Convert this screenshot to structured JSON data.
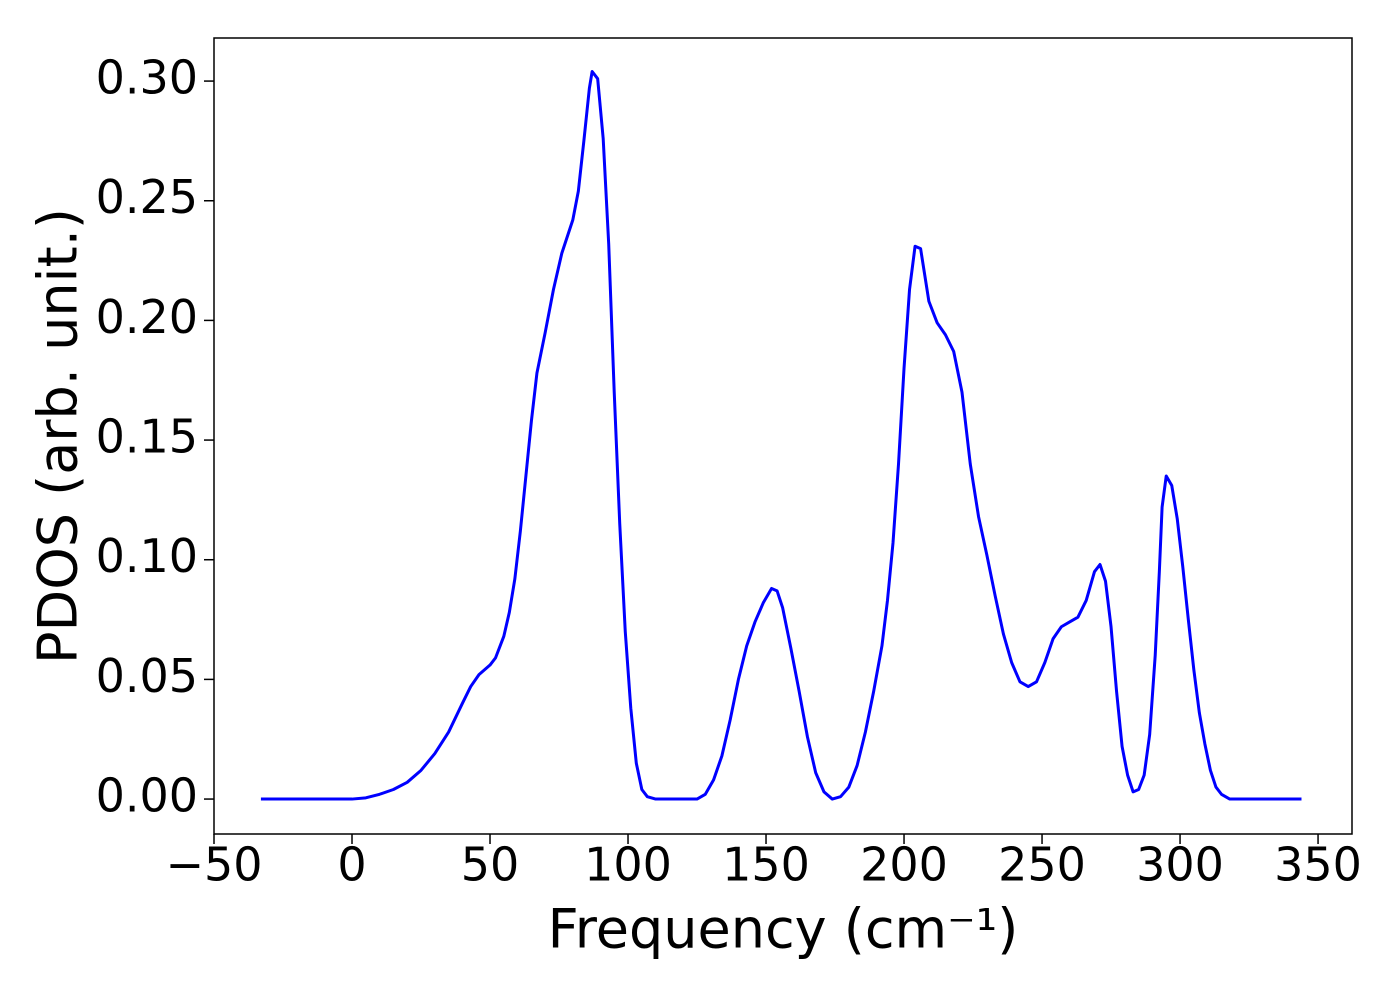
{
  "chart_data": {
    "type": "line",
    "xlabel": "Frequency (cm⁻¹)",
    "ylabel": "PDOS (arb. unit.)",
    "xlim": [
      -50,
      362.3
    ],
    "ylim": [
      -0.0146,
      0.318
    ],
    "xticks": [
      {
        "value": -50,
        "label": "−50"
      },
      0,
      50,
      100,
      150,
      200,
      250,
      300,
      350
    ],
    "yticks": [
      {
        "value": 0,
        "label": "0.00"
      },
      {
        "value": 0.05,
        "label": "0.05"
      },
      {
        "value": 0.1,
        "label": "0.10"
      },
      {
        "value": 0.15,
        "label": "0.15"
      },
      {
        "value": 0.2,
        "label": "0.20"
      },
      {
        "value": 0.25,
        "label": "0.25"
      },
      {
        "value": 0.3,
        "label": "0.30"
      }
    ],
    "color": "#0000ff",
    "x": [
      -33,
      0,
      5,
      10,
      15,
      20,
      25,
      30,
      35,
      40,
      43,
      46,
      50,
      52,
      55,
      57,
      59,
      61,
      63,
      65,
      67,
      70,
      73,
      76,
      80,
      82,
      84,
      86,
      87,
      89,
      91,
      93,
      95,
      97,
      99,
      101,
      103,
      105,
      107,
      110,
      125,
      128,
      131,
      134,
      137,
      140,
      143,
      146,
      149,
      152,
      154,
      156,
      159,
      162,
      165,
      168,
      171,
      174,
      177,
      180,
      183,
      186,
      189,
      192,
      194,
      196,
      198,
      200,
      202,
      204,
      206,
      209,
      212,
      215,
      218,
      221,
      224,
      227,
      230,
      233,
      236,
      239,
      242,
      245,
      248,
      251,
      254,
      257,
      260,
      263,
      266,
      269,
      271,
      273,
      275,
      277,
      279,
      281,
      283,
      285,
      287,
      289,
      291,
      292.5,
      293.5,
      295,
      297,
      299,
      301,
      303,
      305,
      307,
      309,
      311,
      313,
      315,
      318,
      344
    ],
    "values": [
      0,
      0,
      0.0005,
      0.002,
      0.004,
      0.007,
      0.012,
      0.019,
      0.028,
      0.04,
      0.047,
      0.052,
      0.056,
      0.059,
      0.068,
      0.078,
      0.092,
      0.112,
      0.135,
      0.158,
      0.178,
      0.195,
      0.213,
      0.228,
      0.242,
      0.254,
      0.275,
      0.297,
      0.304,
      0.301,
      0.276,
      0.232,
      0.17,
      0.115,
      0.07,
      0.038,
      0.015,
      0.004,
      0.001,
      0,
      0,
      0.002,
      0.008,
      0.018,
      0.033,
      0.05,
      0.064,
      0.074,
      0.082,
      0.088,
      0.087,
      0.08,
      0.063,
      0.045,
      0.026,
      0.011,
      0.003,
      0,
      0.001,
      0.005,
      0.014,
      0.028,
      0.045,
      0.064,
      0.083,
      0.107,
      0.14,
      0.18,
      0.213,
      0.231,
      0.23,
      0.208,
      0.199,
      0.194,
      0.187,
      0.17,
      0.14,
      0.118,
      0.102,
      0.085,
      0.069,
      0.057,
      0.049,
      0.047,
      0.049,
      0.057,
      0.067,
      0.072,
      0.074,
      0.076,
      0.083,
      0.095,
      0.098,
      0.091,
      0.072,
      0.045,
      0.022,
      0.01,
      0.003,
      0.004,
      0.01,
      0.027,
      0.06,
      0.095,
      0.122,
      0.135,
      0.131,
      0.117,
      0.097,
      0.075,
      0.054,
      0.036,
      0.023,
      0.012,
      0.005,
      0.002,
      0,
      0
    ]
  }
}
